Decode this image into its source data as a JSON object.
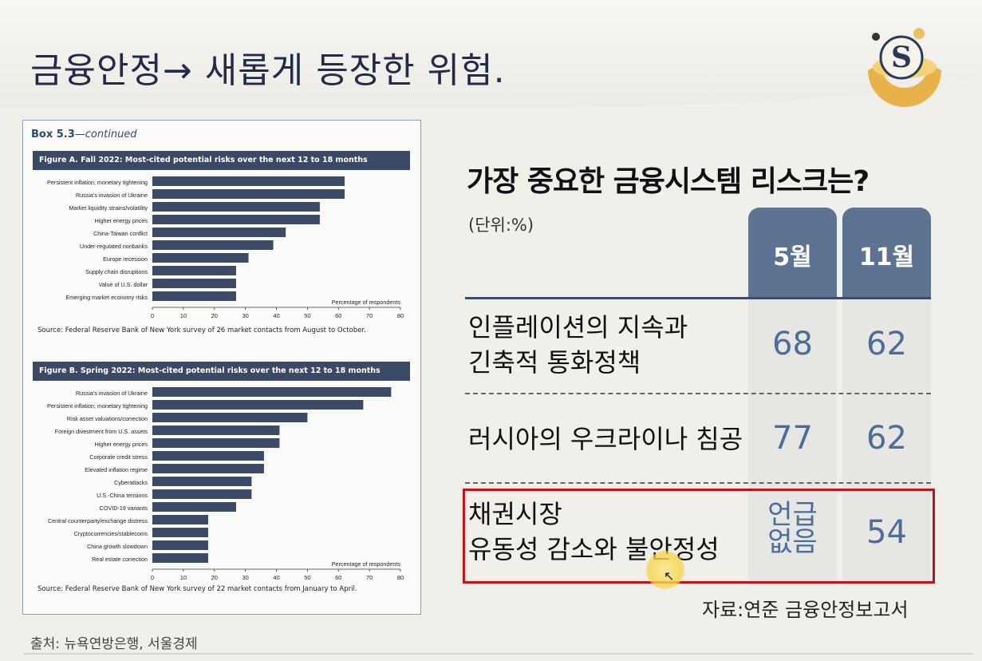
{
  "slide_title": "금융안정→ 새롭게 등장한 위험.",
  "source_bottom": "출처: 뉴욕연방은행, 서울경제",
  "box": {
    "label": "Box 5.3",
    "label_suffix": "—continued"
  },
  "chart_data": [
    {
      "type": "bar",
      "orientation": "horizontal",
      "title": "Figure A. Fall 2022: Most-cited potential risks over the next 12 to 18 months",
      "xlabel": "Percentage of respondents",
      "xlim": [
        0,
        80
      ],
      "xticks": [
        0,
        10,
        20,
        30,
        40,
        50,
        60,
        70,
        80
      ],
      "categories": [
        "Persistent inflation; monetary tightening",
        "Russia's invasion of Ukraine",
        "Market liquidity strains/volatility",
        "Higher energy prices",
        "China-Taiwan conflict",
        "Under-regulated nonbanks",
        "Europe recession",
        "Supply chain disruptions",
        "Value of U.S. dollar",
        "Emerging market economy risks"
      ],
      "values": [
        62,
        62,
        54,
        54,
        43,
        39,
        31,
        27,
        27,
        27
      ],
      "source": "Source: Federal Reserve Bank of New York survey of 26 market contacts from August to October.",
      "bar_color": "#3b4a66"
    },
    {
      "type": "bar",
      "orientation": "horizontal",
      "title": "Figure B. Spring 2022: Most-cited potential risks over the next 12 to 18 months",
      "xlabel": "Percentage of respondents",
      "xlim": [
        0,
        80
      ],
      "xticks": [
        0,
        10,
        20,
        30,
        40,
        50,
        60,
        70,
        80
      ],
      "categories": [
        "Russia's invasion of Ukraine",
        "Persistent inflation; monetary tightening",
        "Risk asset valuations/correction",
        "Foreign divestment from U.S. assets",
        "Higher energy prices",
        "Corporate credit stress",
        "Elevated inflation regime",
        "Cyberattacks",
        "U.S.-China tensions",
        "COVID-19 variants",
        "Central counterparty/exchange distress",
        "Cryptocurrencies/stablecoins",
        "China growth slowdown",
        "Real estate correction"
      ],
      "values": [
        77,
        68,
        50,
        41,
        41,
        36,
        36,
        32,
        32,
        27,
        18,
        18,
        18,
        18
      ],
      "source": "Source: Federal Reserve Bank of New York survey of 22 market contacts from January to April.",
      "bar_color": "#3b4a66"
    },
    {
      "type": "table",
      "title": "가장 중요한 금융시스템 리스크는?",
      "unit": "(단위:%)",
      "columns": [
        "5월",
        "11월"
      ],
      "rows": [
        {
          "label_line1": "인플레이션의 지속과",
          "label_line2": "긴축적 통화정책",
          "may": "68",
          "nov": "62"
        },
        {
          "label_line1": "러시아의 우크라이나 침공",
          "label_line2": "",
          "may": "77",
          "nov": "62"
        },
        {
          "label_line1": "채권시장",
          "label_line2": "유동성 감소와 불안정성",
          "may_line1": "언급",
          "may_line2": "없음",
          "nov": "54"
        }
      ],
      "source": "자료:연준 금융안정보고서",
      "header_color": "#5e7391",
      "value_color": "#4c6c9a",
      "highlight_color": "#c0141c"
    }
  ]
}
